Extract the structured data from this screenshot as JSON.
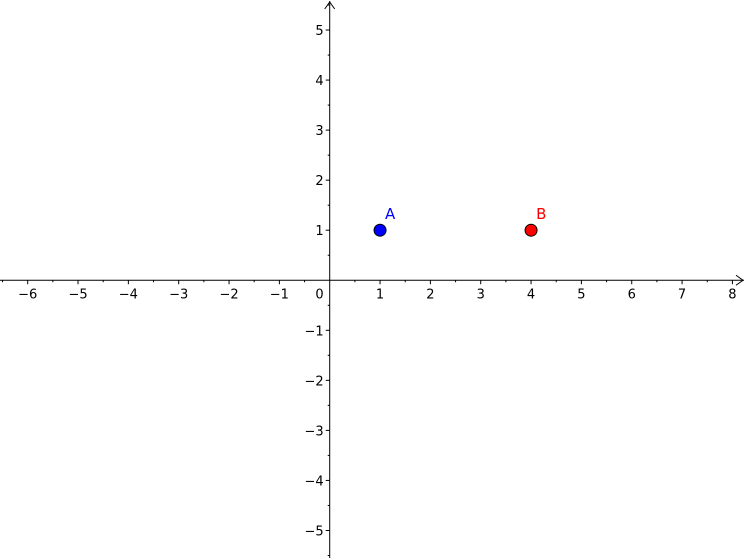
{
  "chart_data": {
    "type": "scatter",
    "xlim": [
      -6.55,
      8.25
    ],
    "ylim": [
      -5.55,
      5.6
    ],
    "grid": false,
    "axis_arrows": true,
    "x_ticks": [
      -6,
      -5,
      -4,
      -3,
      -2,
      -1,
      1,
      2,
      3,
      4,
      5,
      6,
      7,
      8
    ],
    "y_ticks": [
      -5,
      -4,
      -3,
      -2,
      -1,
      1,
      2,
      3,
      4,
      5
    ],
    "origin_label": "0",
    "minus_sign": "−",
    "points": [
      {
        "label": "A",
        "x": 1,
        "y": 1,
        "color": "#0000ff"
      },
      {
        "label": "B",
        "x": 4,
        "y": 1,
        "color": "#ff0000"
      }
    ]
  }
}
